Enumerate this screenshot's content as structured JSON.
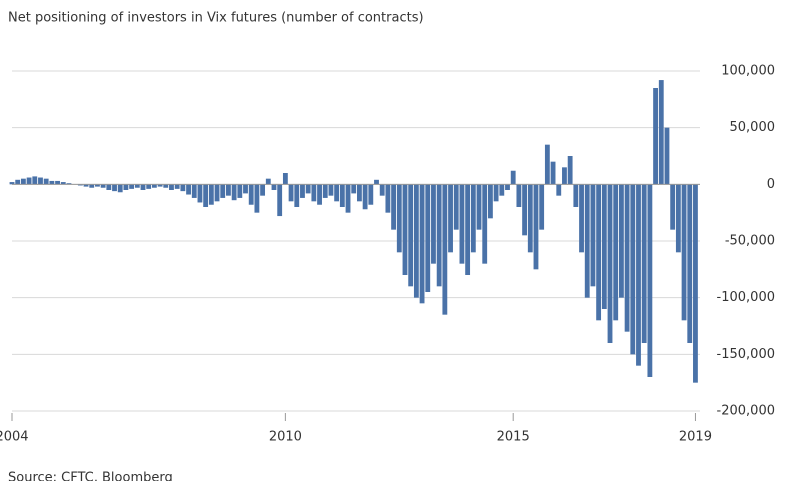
{
  "chart_data": {
    "type": "bar",
    "title": "Net positioning of investors in Vix futures (number of contracts)",
    "source": "Source: CFTC, Bloomberg",
    "color": "#4a72a8",
    "grid": true,
    "x": [
      2004,
      2004.125,
      2004.25,
      2004.375,
      2004.5,
      2004.625,
      2004.75,
      2004.875,
      2005,
      2005.125,
      2005.25,
      2005.375,
      2005.5,
      2005.625,
      2005.75,
      2005.875,
      2006,
      2006.125,
      2006.25,
      2006.375,
      2006.5,
      2006.625,
      2006.75,
      2006.875,
      2007,
      2007.125,
      2007.25,
      2007.375,
      2007.5,
      2007.625,
      2007.75,
      2007.875,
      2008,
      2008.125,
      2008.25,
      2008.375,
      2008.5,
      2008.625,
      2008.75,
      2008.875,
      2009,
      2009.125,
      2009.25,
      2009.375,
      2009.5,
      2009.625,
      2009.75,
      2009.875,
      2010,
      2010.125,
      2010.25,
      2010.375,
      2010.5,
      2010.625,
      2010.75,
      2010.875,
      2011,
      2011.125,
      2011.25,
      2011.375,
      2011.5,
      2011.625,
      2011.75,
      2011.875,
      2012,
      2012.125,
      2012.25,
      2012.375,
      2012.5,
      2012.625,
      2012.75,
      2012.875,
      2013,
      2013.125,
      2013.25,
      2013.375,
      2013.5,
      2013.625,
      2013.75,
      2013.875,
      2014,
      2014.125,
      2014.25,
      2014.375,
      2014.5,
      2014.625,
      2014.75,
      2014.875,
      2015,
      2015.125,
      2015.25,
      2015.375,
      2015.5,
      2015.625,
      2015.75,
      2015.875,
      2016,
      2016.125,
      2016.25,
      2016.375,
      2016.5,
      2016.625,
      2016.75,
      2016.875,
      2017,
      2017.125,
      2017.25,
      2017.375,
      2017.5,
      2017.625,
      2017.75,
      2017.875,
      2018,
      2018.125,
      2018.25,
      2018.375,
      2018.5,
      2018.625,
      2018.75,
      2018.875,
      2019
    ],
    "values": [
      2000,
      4000,
      5000,
      6000,
      7000,
      6000,
      5000,
      3000,
      3000,
      2000,
      1000,
      0,
      -1000,
      -2000,
      -3000,
      -2000,
      -3000,
      -5000,
      -6000,
      -7000,
      -5000,
      -4000,
      -3000,
      -5000,
      -4000,
      -3000,
      -2000,
      -3000,
      -5000,
      -4000,
      -6000,
      -9000,
      -12000,
      -16000,
      -20000,
      -18000,
      -15000,
      -12000,
      -10000,
      -14000,
      -12000,
      -8000,
      -18000,
      -25000,
      -10000,
      5000,
      -5000,
      -28000,
      10000,
      -15000,
      -20000,
      -12000,
      -8000,
      -15000,
      -18000,
      -12000,
      -10000,
      -15000,
      -20000,
      -25000,
      -8000,
      -15000,
      -22000,
      -18000,
      4000,
      -10000,
      -25000,
      -40000,
      -60000,
      -80000,
      -90000,
      -100000,
      -105000,
      -95000,
      -70000,
      -90000,
      -115000,
      -60000,
      -40000,
      -70000,
      -80000,
      -60000,
      -40000,
      -70000,
      -30000,
      -15000,
      -10000,
      -5000,
      12000,
      -20000,
      -45000,
      -60000,
      -75000,
      -40000,
      35000,
      20000,
      -10000,
      15000,
      25000,
      -20000,
      -60000,
      -100000,
      -90000,
      -120000,
      -110000,
      -140000,
      -120000,
      -100000,
      -130000,
      -150000,
      -160000,
      -140000,
      -170000,
      85000,
      92000,
      50000,
      -40000,
      -60000,
      -120000,
      -140000,
      -175000
    ],
    "xlim": [
      2004,
      2019.1
    ],
    "xticks": [
      2004,
      2010,
      2015,
      2019
    ],
    "ylim": [
      -200000,
      100000
    ],
    "yticks": [
      {
        "value": 100000,
        "label": "100,000"
      },
      {
        "value": 50000,
        "label": "50,000"
      },
      0,
      {
        "value": -50000,
        "label": "-50,000"
      },
      {
        "value": -100000,
        "label": "-100,000"
      },
      {
        "value": -150000,
        "label": "-150,000"
      },
      {
        "value": -200000,
        "label": "-200,000"
      }
    ]
  }
}
